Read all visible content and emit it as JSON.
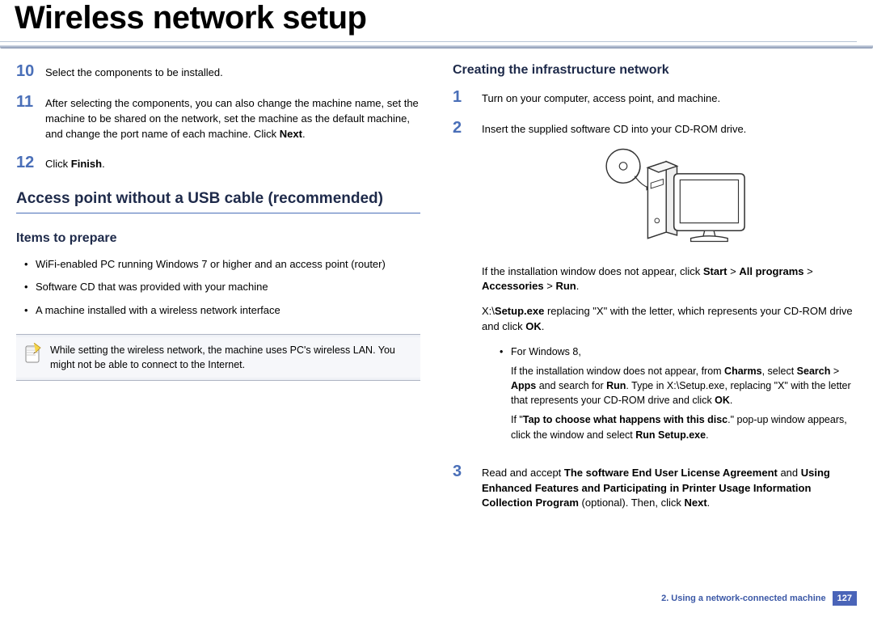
{
  "title": "Wireless network setup",
  "left": {
    "steps": [
      {
        "num": "10",
        "html": "Select the components to be installed."
      },
      {
        "num": "11",
        "html": "After selecting the components, you can also change the machine name, set the machine to be shared on the network, set the machine as the default machine, and change the port name of each machine. Click <b>Next</b>."
      },
      {
        "num": "12",
        "html": "Click <b>Finish</b>."
      }
    ],
    "h2": "Access point without a USB cable (recommended)",
    "h3": "Items to prepare",
    "bullets": [
      "WiFi-enabled PC running Windows 7 or higher and an access point (router)",
      "Software CD that was provided with your machine",
      "A machine installed with a wireless network interface"
    ],
    "note": "While setting the wireless network, the machine uses PC's wireless LAN. You might not be able to connect to the Internet."
  },
  "right": {
    "h3": "Creating the infrastructure network",
    "step1": {
      "num": "1",
      "html": "Turn on your computer, access point, and machine."
    },
    "step2": {
      "num": "2",
      "html": "Insert the supplied software CD into your CD-ROM drive."
    },
    "after2_p1": "If the installation window does not appear, click <b>Start</b> > <b>All programs</b> > <b>Accessories</b> > <b>Run</b>.",
    "after2_p2": " X:\\<b>Setup.exe</b> replacing \"X\" with the letter, which represents your CD-ROM drive and click <b>OK</b>.",
    "win8_label": "For Windows 8,",
    "win8_p1": "If the installation window does not appear, from <b>Charms</b>, select <b>Search</b> > <b>Apps</b> and search for <b>Run</b>. Type in X:\\Setup.exe, replacing \"X\" with the letter that represents your CD-ROM drive and click <b>OK</b>.",
    "win8_p2": "If \"<b>Tap to choose what happens with this disc</b>.\" pop-up window appears, click the window and select <b>Run Setup.exe</b>.",
    "step3": {
      "num": "3",
      "html": "Read and accept <b>The software End User License Agreement</b>  and <b>Using Enhanced Features and Participating in Printer Usage Information Collection Program</b> (optional). Then, click <b>Next</b>."
    }
  },
  "footer": {
    "chapter": "2.  Using a network-connected machine",
    "page": "127"
  },
  "colors": {
    "step_num": "#4a6fb8",
    "heading": "#1e2a4a",
    "divider": "#b8c5d6",
    "footer_text": "#3b58a6",
    "page_box_bg": "#4a64b8"
  }
}
